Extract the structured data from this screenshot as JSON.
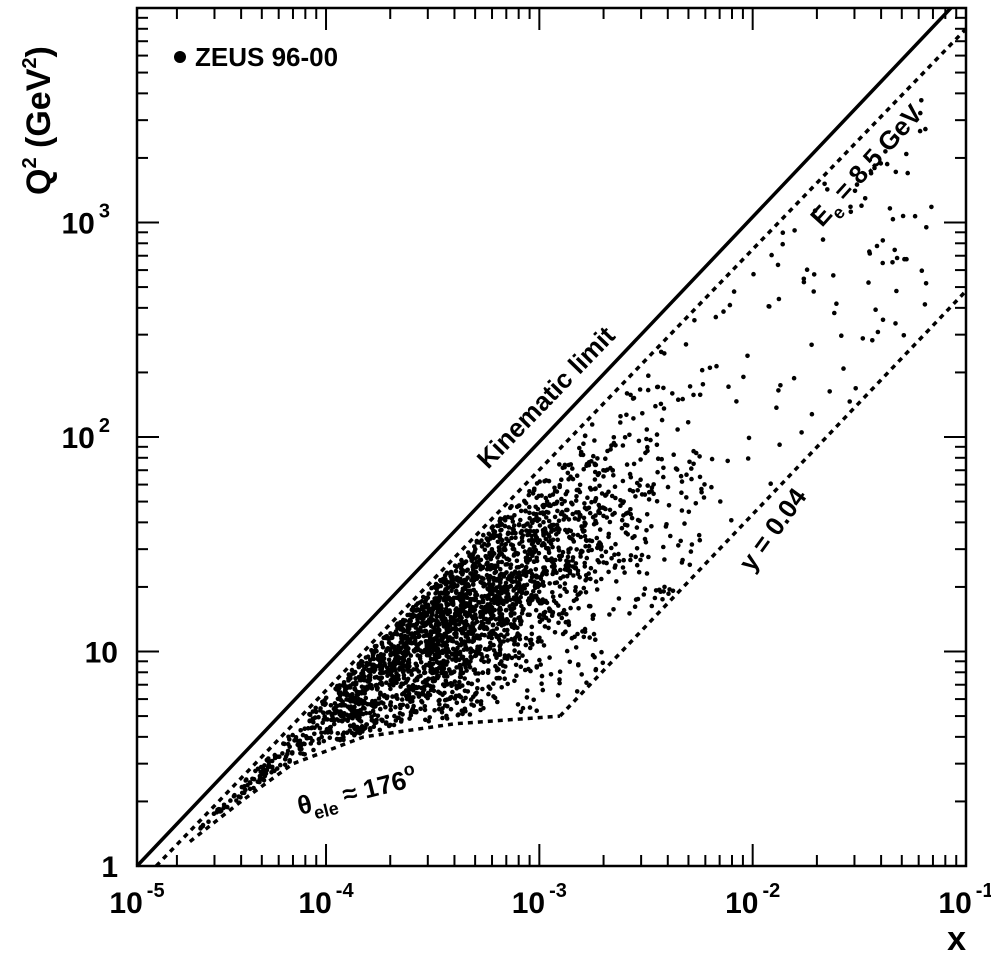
{
  "chart_data": {
    "type": "scatter",
    "title": "",
    "xlabel": "x",
    "ylabel": {
      "base": "Q",
      "sup1": "2",
      "unit_open": " (GeV",
      "sup2": "2",
      "unit_close": ")"
    },
    "x_scale": "log",
    "y_scale": "log",
    "xlim": [
      1.3e-05,
      0.1
    ],
    "ylim": [
      1,
      10000
    ],
    "x_ticks": [
      {
        "value": 1e-05,
        "base": "10",
        "exp": "-5"
      },
      {
        "value": 0.0001,
        "base": "10",
        "exp": "-4"
      },
      {
        "value": 0.001,
        "base": "10",
        "exp": "-3"
      },
      {
        "value": 0.01,
        "base": "10",
        "exp": "-2"
      },
      {
        "value": 0.1,
        "base": "10",
        "exp": "-1"
      }
    ],
    "y_ticks": [
      {
        "value": 1,
        "base": "1",
        "exp": ""
      },
      {
        "value": 10,
        "base": "10",
        "exp": ""
      },
      {
        "value": 100,
        "base": "10",
        "exp": "2"
      },
      {
        "value": 1000,
        "base": "10",
        "exp": "3"
      }
    ],
    "legend": {
      "label": "ZEUS 96-00",
      "position": "top-left"
    },
    "lines": [
      {
        "label": "Kinematic limit",
        "style": "solid",
        "points": [
          [
            1.3e-05,
            1.0
          ],
          [
            0.085,
            10000
          ]
        ]
      },
      {
        "label": "E_e = 8.5 GeV",
        "style": "dashed",
        "points": [
          [
            1.6e-05,
            1.0
          ],
          [
            0.1,
            8000
          ]
        ]
      },
      {
        "label": "y = 0.04",
        "style": "dashed",
        "points": [
          [
            0.00125,
            5.0
          ],
          [
            0.1,
            480
          ]
        ]
      },
      {
        "label": "θ_ele ≈ 176°",
        "style": "dashed",
        "points": [
          [
            2.3e-05,
            1.3
          ],
          [
            4e-05,
            2.0
          ],
          [
            7e-05,
            3.0
          ],
          [
            0.00015,
            4.0
          ],
          [
            0.0004,
            4.6
          ],
          [
            0.00125,
            5.0
          ]
        ]
      }
    ],
    "annotations": {
      "kinematic": "Kinematic limit",
      "ee_base": "E",
      "ee_sub": "e",
      "ee_rest": " = 8.5 GeV",
      "y": "y = 0.04",
      "theta_base": "θ",
      "theta_sub": "ele",
      "theta_rest": " ≈ 176",
      "theta_sup": "o"
    },
    "scatter_description": "Approximately 3000 ZEUS 96-00 events populating the region between the kinematic limit, the θ_ele ≈ 176° and y = 0.04 boundaries; densest near x ≈ 3×10⁻⁴, Q² ≈ 10–20 GeV², sparse points reaching x ≈ 0.06, Q² ≈ 2000 GeV²."
  }
}
